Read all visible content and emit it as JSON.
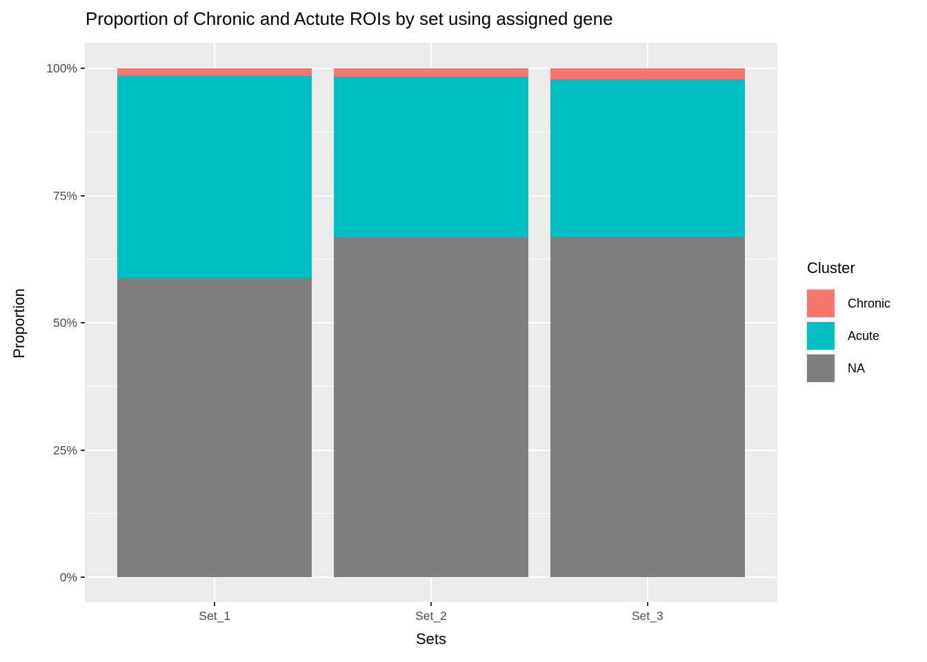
{
  "chart_data": {
    "type": "bar",
    "variant": "stacked-100-percent",
    "title": "Proportion of Chronic and Actute ROIs by set using assigned gene",
    "xlabel": "Sets",
    "ylabel": "Proportion",
    "categories": [
      "Set_1",
      "Set_2",
      "Set_3"
    ],
    "series": [
      {
        "name": "Chronic",
        "color": "#F8766D",
        "values": [
          1.5,
          1.6,
          2.2
        ]
      },
      {
        "name": "Acute",
        "color": "#00BFC4",
        "values": [
          39.7,
          31.6,
          30.9
        ]
      },
      {
        "name": "NA",
        "color": "#7F7F7F",
        "values": [
          58.8,
          66.8,
          66.9
        ]
      }
    ],
    "y_ticks": [
      {
        "label": "0%",
        "value": 0
      },
      {
        "label": "25%",
        "value": 25
      },
      {
        "label": "50%",
        "value": 50
      },
      {
        "label": "75%",
        "value": 75
      },
      {
        "label": "100%",
        "value": 100
      }
    ],
    "y_minor_values": [
      12.5,
      37.5,
      62.5,
      87.5
    ],
    "ylim": [
      0,
      100
    ],
    "grid": "on",
    "legend": {
      "title": "Cluster",
      "position": "right"
    },
    "colors": {
      "panel_background": "#EBEBEB",
      "gridline": "#FFFFFF",
      "legend_key_background": "#F2F2F2",
      "axis_text": "#4D4D4D",
      "tick_mark": "#333333"
    }
  }
}
